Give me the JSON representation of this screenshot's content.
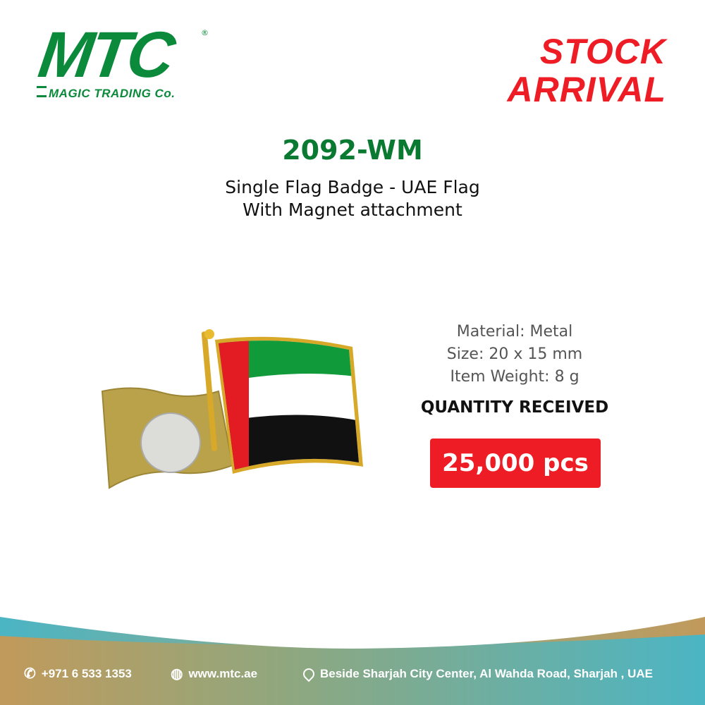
{
  "brand": {
    "logo_text": "MTC",
    "logo_sub": "MAGIC TRADING Co.",
    "registered": "®",
    "color": "#0a8a3a"
  },
  "banner": {
    "line1": "STOCK",
    "line2": "ARRIVAL",
    "color": "#ee1c25"
  },
  "product": {
    "code": "2092-WM",
    "desc_line1": "Single Flag Badge - UAE Flag",
    "desc_line2": "With Magnet attachment",
    "specs": [
      "Material: Metal",
      "Size: 20 x 15 mm",
      "Item Weight: 8 g"
    ],
    "quantity_label": "QUANTITY RECEIVED",
    "quantity": "25,000 pcs"
  },
  "footer": {
    "phone": "+971 6 533 1353",
    "website": "www.mtc.ae",
    "address": "Beside Sharjah City Center, Al Wahda Road, Sharjah , UAE",
    "gold": "#c19a5b",
    "teal": "#4bb5c4"
  }
}
